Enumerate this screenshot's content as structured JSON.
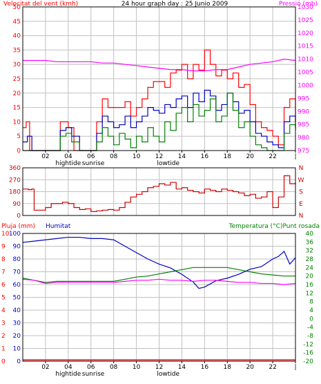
{
  "colors": {
    "wind": "#ff0000",
    "gust": "#ff0000",
    "pressure": "#ff00ff",
    "temperature": "#008000",
    "humidity": "#0000c0",
    "dewpoint": "#ff00ff",
    "rain": "#ff0000",
    "direction": "#cc0000",
    "grid": "#c0c0c0",
    "frame": "#000000",
    "title": "#000000"
  },
  "header": {
    "left": "Velocitat del vent (kmh)",
    "center": "24 hour graph day : 25 Junio 2009",
    "right": "Pressió (mb)"
  },
  "hour_labels": [
    "02",
    "04",
    "06",
    "08",
    "10",
    "12",
    "14",
    "16",
    "18",
    "20",
    "22",
    "|"
  ],
  "events": [
    {
      "label": "hightide",
      "hour": 4.0
    },
    {
      "label": "sunrise",
      "hour": 6.2
    },
    {
      "label": "lowtide",
      "hour": 12.8
    }
  ],
  "chart_data": [
    {
      "type": "line",
      "x_label": "",
      "xlim": [
        0,
        24
      ],
      "y_left": {
        "title": "Velocitat del vent (kmh)",
        "ticks": [
          0,
          5,
          10,
          15,
          20,
          25,
          30,
          35,
          40,
          45,
          50
        ],
        "range": [
          0,
          50
        ]
      },
      "y_right": {
        "title": "Pressió (mb)",
        "ticks": [
          975,
          980,
          985,
          990,
          995,
          1000,
          1005,
          1010,
          1015,
          1020,
          1025,
          1030
        ],
        "range": [
          975,
          1030
        ]
      },
      "series": [
        {
          "axis": "left",
          "x": [
            0,
            0.3,
            0.6,
            1.0,
            2.0,
            3.0,
            3.3,
            3.7,
            4.0,
            4.5,
            5.0,
            6.0,
            6.5,
            7.0,
            7.5,
            8.0,
            8.5,
            9.0,
            9.5,
            10.0,
            10.5,
            11.0,
            11.5,
            12.0,
            12.5,
            13.0,
            13.5,
            14.0,
            14.5,
            15.0,
            15.5,
            16.0,
            16.5,
            17.0,
            17.5,
            18.0,
            18.5,
            19.0,
            19.5,
            20.0,
            20.5,
            21.0,
            21.5,
            22.0,
            22.5,
            23.0,
            23.5,
            24.0
          ],
          "values": [
            8,
            10,
            0,
            0,
            0,
            0,
            10,
            10,
            8,
            0,
            0,
            0,
            10,
            18,
            15,
            15,
            15,
            17,
            12,
            15,
            18,
            22,
            24,
            24,
            22,
            27,
            28,
            30,
            25,
            30,
            28,
            35,
            30,
            26,
            28,
            25,
            27,
            22,
            23,
            16,
            10,
            8,
            7,
            5,
            2,
            15,
            18,
            10
          ]
        },
        {
          "axis": "left",
          "x": [
            0,
            0.4,
            0.8,
            2.0,
            3.0,
            3.3,
            3.8,
            4.3,
            5.0,
            6.0,
            6.5,
            7.0,
            7.5,
            8.0,
            8.5,
            9.0,
            9.5,
            10.0,
            10.5,
            11.0,
            11.5,
            12.0,
            12.5,
            13.0,
            13.5,
            14.0,
            14.5,
            15.0,
            15.5,
            16.0,
            16.5,
            17.0,
            17.5,
            18.0,
            18.5,
            19.0,
            19.5,
            20.0,
            20.5,
            21.0,
            21.5,
            22.0,
            22.5,
            23.0,
            23.5,
            24.0
          ],
          "values": [
            3,
            5,
            0,
            0,
            0,
            7,
            8,
            5,
            0,
            0,
            6,
            12,
            10,
            8,
            9,
            12,
            8,
            10,
            12,
            15,
            14,
            13,
            16,
            15,
            18,
            19,
            15,
            20,
            17,
            21,
            19,
            14,
            16,
            20,
            17,
            13,
            14,
            10,
            6,
            5,
            3,
            2,
            1,
            10,
            12,
            8
          ]
        },
        {
          "axis": "left",
          "x": [
            0,
            2.0,
            3.0,
            3.3,
            3.8,
            4.3,
            5.0,
            6.0,
            6.5,
            7.0,
            7.5,
            8.0,
            8.5,
            9.0,
            9.5,
            10.0,
            10.5,
            11.0,
            11.5,
            12.0,
            12.5,
            13.0,
            13.5,
            14.0,
            14.5,
            15.0,
            15.5,
            16.0,
            16.5,
            17.0,
            17.5,
            18.0,
            18.5,
            19.0,
            19.5,
            20.0,
            20.5,
            21.0,
            21.5,
            22.0,
            22.5,
            23.0,
            23.5,
            24.0
          ],
          "values": [
            0,
            0,
            0,
            5,
            6,
            3,
            0,
            0,
            3,
            8,
            5,
            2,
            6,
            4,
            1,
            5,
            3,
            8,
            5,
            3,
            10,
            7,
            13,
            15,
            10,
            16,
            12,
            14,
            18,
            10,
            12,
            20,
            14,
            8,
            10,
            5,
            2,
            1,
            0,
            0,
            0,
            6,
            9,
            7
          ]
        },
        {
          "axis": "right",
          "x": [
            0,
            1,
            2,
            3,
            4,
            5,
            6,
            7,
            8,
            9,
            10,
            11,
            12,
            13,
            14,
            15,
            16,
            17,
            18,
            19,
            20,
            21,
            22,
            23,
            24
          ],
          "values": [
            1009.5,
            1009.5,
            1009.5,
            1009,
            1009,
            1009,
            1009,
            1008.5,
            1008.5,
            1008,
            1007.5,
            1007,
            1006.5,
            1006,
            1006,
            1005.5,
            1005.5,
            1006,
            1006,
            1007,
            1008,
            1008.5,
            1009,
            1010,
            1009.5
          ]
        }
      ]
    },
    {
      "type": "scatter",
      "x_label": "",
      "xlim": [
        0,
        24
      ],
      "y_left": {
        "title": "",
        "ticks": [
          0,
          90,
          180,
          270,
          360
        ],
        "range": [
          0,
          360
        ]
      },
      "y_right": {
        "title": "",
        "ticks": [
          "N",
          "W",
          "S",
          "E",
          "N"
        ]
      },
      "series": [
        {
          "x": [
            0,
            0.5,
            0.8,
            1.0,
            1.5,
            2.0,
            2.5,
            3.0,
            3.5,
            4.0,
            4.5,
            5.0,
            5.5,
            6.0,
            6.5,
            7.0,
            7.5,
            8.0,
            8.5,
            9.0,
            9.5,
            10.0,
            10.5,
            11.0,
            11.5,
            12.0,
            12.5,
            13.0,
            13.5,
            14.0,
            14.5,
            15.0,
            15.5,
            16.0,
            16.5,
            17.0,
            17.5,
            18.0,
            18.5,
            19.0,
            19.5,
            20.0,
            20.5,
            21.0,
            21.5,
            22.0,
            22.5,
            23.0,
            23.5,
            24.0
          ],
          "values": [
            200,
            195,
            200,
            40,
            40,
            60,
            90,
            90,
            100,
            90,
            60,
            45,
            50,
            30,
            35,
            40,
            45,
            40,
            60,
            100,
            140,
            160,
            180,
            210,
            220,
            240,
            230,
            250,
            200,
            210,
            190,
            180,
            170,
            200,
            190,
            180,
            200,
            190,
            180,
            170,
            150,
            160,
            130,
            140,
            180,
            60,
            140,
            300,
            240,
            250
          ]
        }
      ]
    },
    {
      "type": "line",
      "x_label": "",
      "xlim": [
        0,
        24
      ],
      "y_left": {
        "title": "Pluja (mm)",
        "ticks": [
          0,
          1,
          2,
          3,
          4,
          5,
          6,
          7,
          8,
          9,
          10
        ]
      },
      "y_left_inner": {
        "title": "Humitat",
        "ticks": [
          0,
          10,
          20,
          30,
          40,
          50,
          60,
          70,
          80,
          90,
          100
        ],
        "range": [
          0,
          100
        ]
      },
      "y_right": {
        "title": "Temperatura (°C)Punt rosada",
        "ticks": [
          -20,
          -16,
          -12,
          -8,
          -4,
          0,
          4,
          8,
          12,
          16,
          20,
          24,
          28,
          32,
          36,
          40
        ],
        "range": [
          -20,
          40
        ]
      },
      "series": [
        {
          "axis": "inner",
          "x": [
            0,
            1,
            2,
            3,
            4,
            5,
            6,
            7,
            8,
            9,
            10,
            11,
            12,
            13,
            14,
            15,
            15.5,
            16,
            17,
            18,
            19,
            20,
            21,
            22,
            22.5,
            23,
            23.5,
            24
          ],
          "values": [
            93,
            94,
            95,
            96,
            97,
            97,
            96,
            96,
            95,
            90,
            85,
            80,
            76,
            73,
            68,
            62,
            57,
            58,
            63,
            65,
            68,
            72,
            74,
            80,
            82,
            86,
            76,
            81
          ]
        },
        {
          "axis": "right",
          "x": [
            0,
            1,
            2,
            3,
            4,
            5,
            6,
            7,
            8,
            9,
            10,
            11,
            12,
            13,
            14,
            15,
            16,
            17,
            18,
            19,
            20,
            21,
            22,
            23,
            24
          ],
          "values": [
            19,
            18,
            17,
            17.5,
            17.5,
            17.5,
            17.5,
            17.5,
            17.5,
            18.5,
            19.5,
            20,
            21,
            22,
            23,
            24,
            24,
            24,
            24,
            23,
            22,
            21,
            20.5,
            20,
            20
          ]
        },
        {
          "axis": "right",
          "x": [
            0,
            1,
            2,
            3,
            4,
            5,
            6,
            7,
            8,
            9,
            10,
            11,
            12,
            13,
            14,
            15,
            16,
            17,
            18,
            19,
            20,
            21,
            22,
            23,
            24
          ],
          "values": [
            18.5,
            18,
            16.5,
            17,
            17,
            17,
            17,
            17,
            17,
            17.5,
            18,
            18,
            18.5,
            18,
            18,
            17.5,
            18,
            18,
            17.5,
            17,
            17,
            16.5,
            16.5,
            16,
            16.5
          ]
        },
        {
          "axis": "left",
          "x": [
            0,
            24
          ],
          "values": [
            0,
            0
          ]
        }
      ]
    }
  ]
}
